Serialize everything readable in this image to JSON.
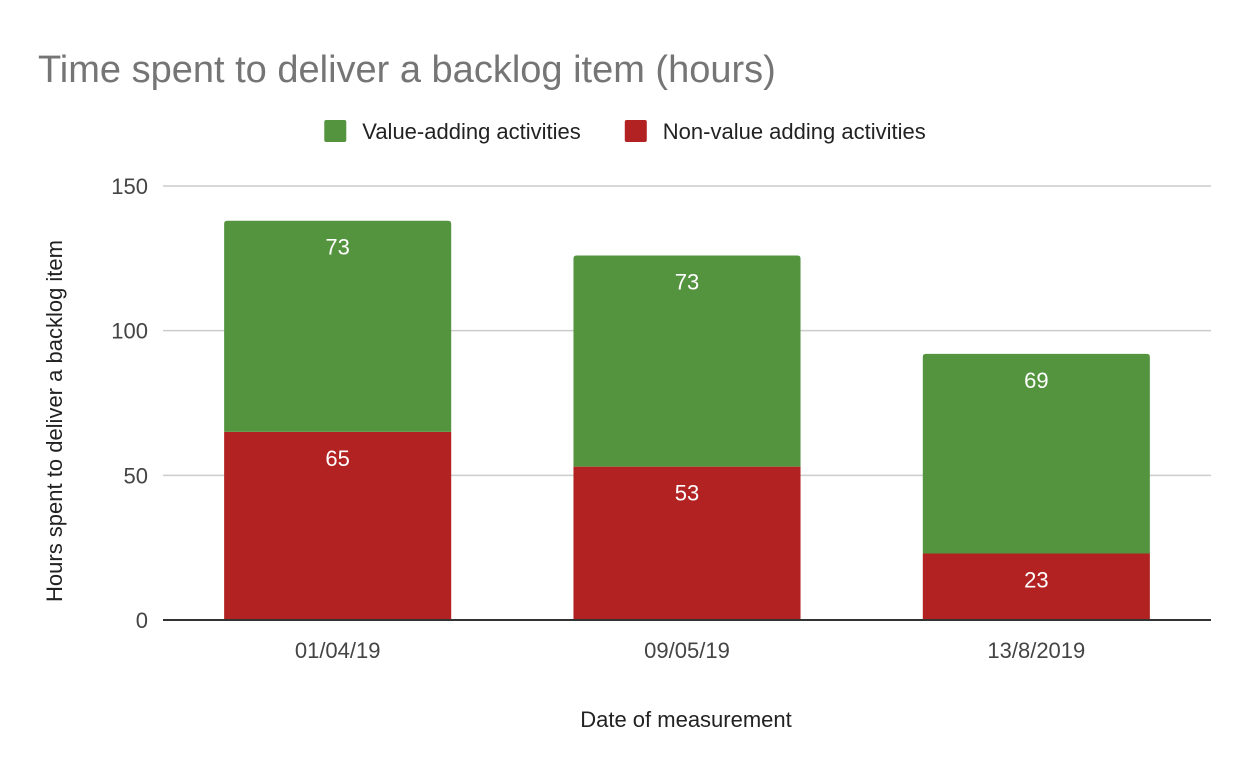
{
  "chart_data": {
    "type": "bar",
    "stacked": true,
    "title": "Time spent to deliver a backlog item (hours)",
    "xlabel": "Date of measurement",
    "ylabel": "Hours spent to deliver a backlog item",
    "categories": [
      "01/04/19",
      "09/05/19",
      "13/8/2019"
    ],
    "series": [
      {
        "name": "Non-value adding activities",
        "color": "#b22222",
        "values": [
          65,
          53,
          23
        ]
      },
      {
        "name": "Value-adding activities",
        "color": "#54943f",
        "values": [
          73,
          73,
          69
        ]
      }
    ],
    "legend_order": [
      1,
      0
    ],
    "legend_position": "top",
    "ylim": [
      0,
      150
    ],
    "yticks": [
      0,
      50,
      100,
      150
    ],
    "grid": true,
    "data_labels": true
  }
}
